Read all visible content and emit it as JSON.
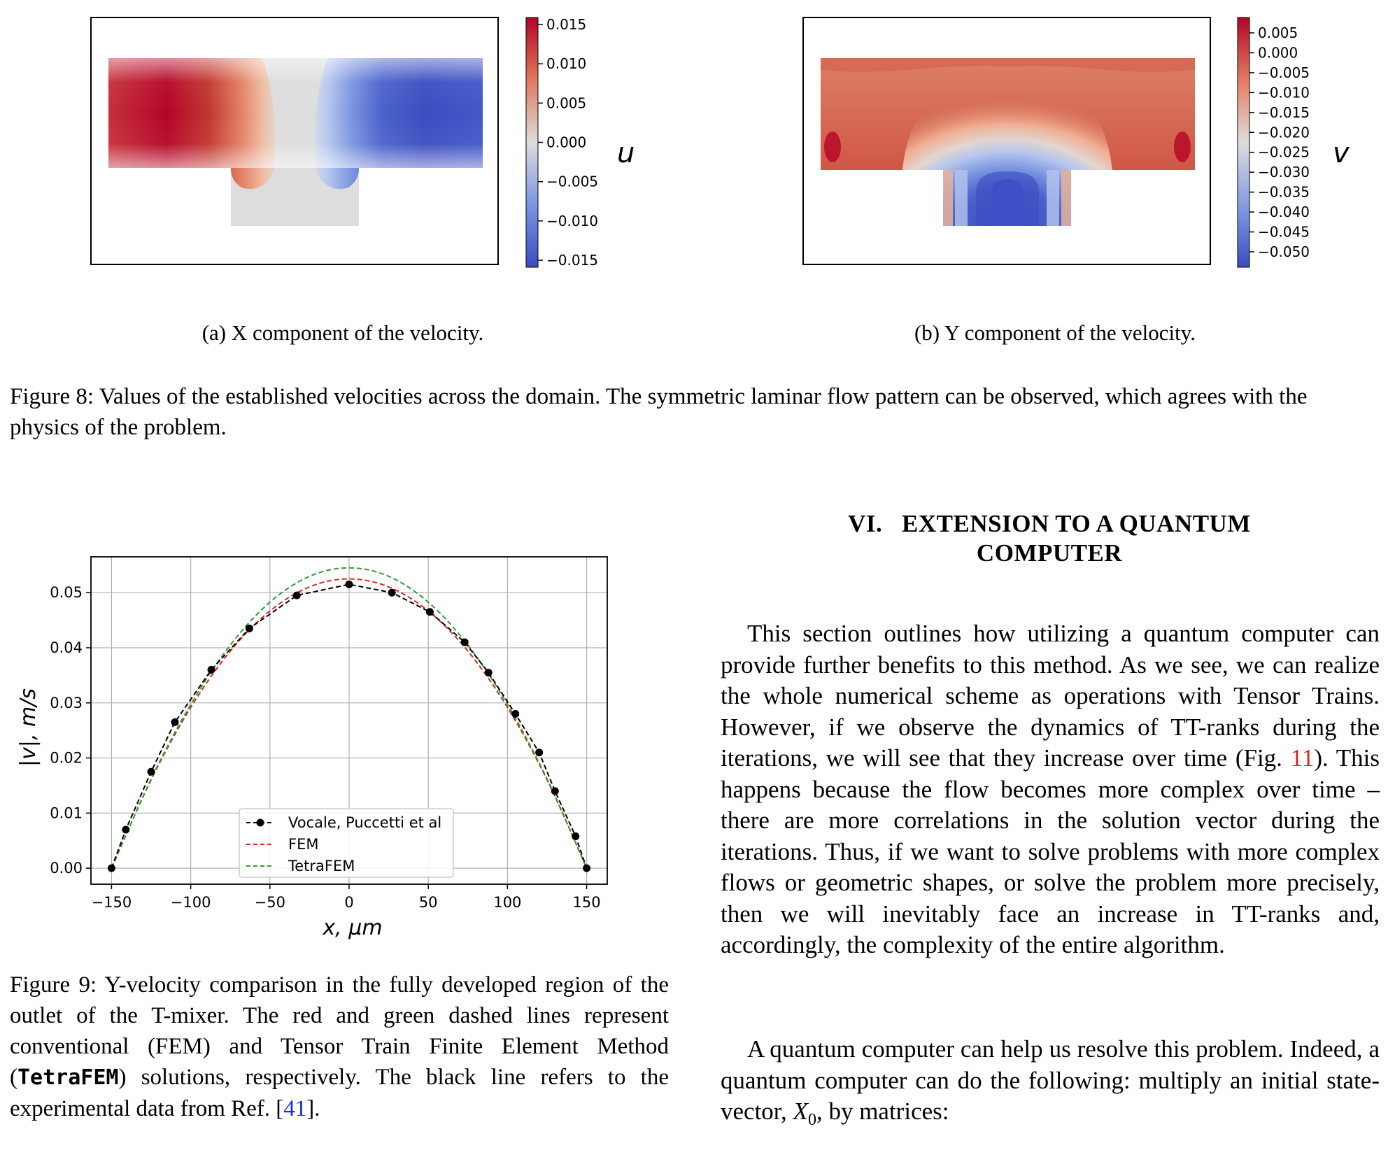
{
  "figure8": {
    "panel_a": {
      "caption": "(a) X component of the velocity.",
      "colorbar_label": "u",
      "colorbar_ticks": [
        "0.015",
        "0.010",
        "0.005",
        "0.000",
        "−0.005",
        "−0.010",
        "−0.015"
      ],
      "colormap": "coolwarm",
      "colors": {
        "neg": "#3b4cc0",
        "zero": "#dddddd",
        "pos": "#b40426"
      }
    },
    "panel_b": {
      "caption": "(b) Y component of the velocity.",
      "colorbar_label": "v",
      "colorbar_ticks": [
        "0.005",
        "0.000",
        "−0.005",
        "−0.010",
        "−0.015",
        "−0.020",
        "−0.025",
        "−0.030",
        "−0.035",
        "−0.040",
        "−0.045",
        "−0.050"
      ],
      "colormap": "coolwarm"
    },
    "caption": "Figure 8: Values of the established velocities across the domain. The symmetric laminar flow pattern can be observed, which agrees with the physics of the problem."
  },
  "figure9": {
    "caption": {
      "part1": "Figure 9: Y-velocity comparison in the fully developed region of the outlet of the T-mixer. The red and green dashed lines represent conventional (FEM) and Tensor Train Finite Element Method (",
      "code": "TetraFEM",
      "part2": ") solutions, respectively. The black line refers to the experimental data from Ref. [",
      "ref": "41",
      "part3": "]."
    }
  },
  "chart_data": {
    "type": "line",
    "xlabel": "x, μm",
    "ylabel": "|v|, m/s",
    "xlim": [
      -163,
      163
    ],
    "ylim": [
      -0.0029,
      0.0565
    ],
    "xticks": [
      -150,
      -100,
      -50,
      0,
      50,
      100,
      150
    ],
    "xtick_labels": [
      "−150",
      "−100",
      "−50",
      "0",
      "50",
      "100",
      "150"
    ],
    "yticks": [
      0.0,
      0.01,
      0.02,
      0.03,
      0.04,
      0.05
    ],
    "ytick_labels": [
      "0.00",
      "0.01",
      "0.02",
      "0.03",
      "0.04",
      "0.05"
    ],
    "grid": true,
    "legend_position": "lower center",
    "series": [
      {
        "name": "Vocale, Puccetti et al",
        "style": "dashed-marker",
        "color": "#000000",
        "x": [
          -150,
          -141,
          -125,
          -110,
          -87,
          -63,
          -33,
          0,
          27,
          51,
          73,
          88,
          105,
          120,
          130,
          143,
          150
        ],
        "y": [
          0.0,
          0.007,
          0.0175,
          0.0265,
          0.036,
          0.0435,
          0.0495,
          0.0515,
          0.05,
          0.0465,
          0.041,
          0.0355,
          0.028,
          0.021,
          0.014,
          0.0058,
          0.0
        ]
      },
      {
        "name": "FEM",
        "style": "dashed",
        "color": "#d62728",
        "x": [
          -150,
          -125,
          -100,
          -75,
          -50,
          -25,
          0,
          25,
          50,
          75,
          100,
          125,
          150
        ],
        "y": [
          0.0,
          0.01604,
          0.02917,
          0.0394,
          0.04667,
          0.05104,
          0.0525,
          0.05104,
          0.04667,
          0.0394,
          0.02917,
          0.01604,
          0.0
        ]
      },
      {
        "name": "TetraFEM",
        "style": "dashed",
        "color": "#2ca02c",
        "x": [
          -150,
          -125,
          -100,
          -75,
          -50,
          -25,
          0,
          25,
          50,
          75,
          100,
          125,
          150
        ],
        "y": [
          0.0,
          0.01619,
          0.02972,
          0.04049,
          0.04827,
          0.05296,
          0.0545,
          0.05296,
          0.04827,
          0.04049,
          0.02972,
          0.01619,
          0.0
        ]
      }
    ]
  },
  "section": {
    "number": "VI.",
    "title_line1": "EXTENSION TO A QUANTUM",
    "title_line2": "COMPUTER"
  },
  "paragraph1": {
    "part1": "This section outlines how utilizing a quantum computer can provide further benefits to this method. As we see, we can realize the whole numerical scheme as operations with Tensor Trains. However, if we observe the dynamics of TT-ranks during the iterations, we will see that they increase over time (Fig. ",
    "ref": "11",
    "part2": "). This happens because the flow becomes more complex over time – there are more correlations in the solution vector during the iterations. Thus, if we want to solve problems with more complex flows or geometric shapes, or solve the problem more precisely, then we will inevitably face an increase in TT-ranks and, accordingly, the complexity of the entire algorithm."
  },
  "paragraph2": {
    "part1": "A quantum computer can help us resolve this problem. Indeed, a quantum computer can do the following: multiply an initial state-vector, ",
    "var": "X",
    "sub": "0",
    "part2": ", by matrices:"
  }
}
